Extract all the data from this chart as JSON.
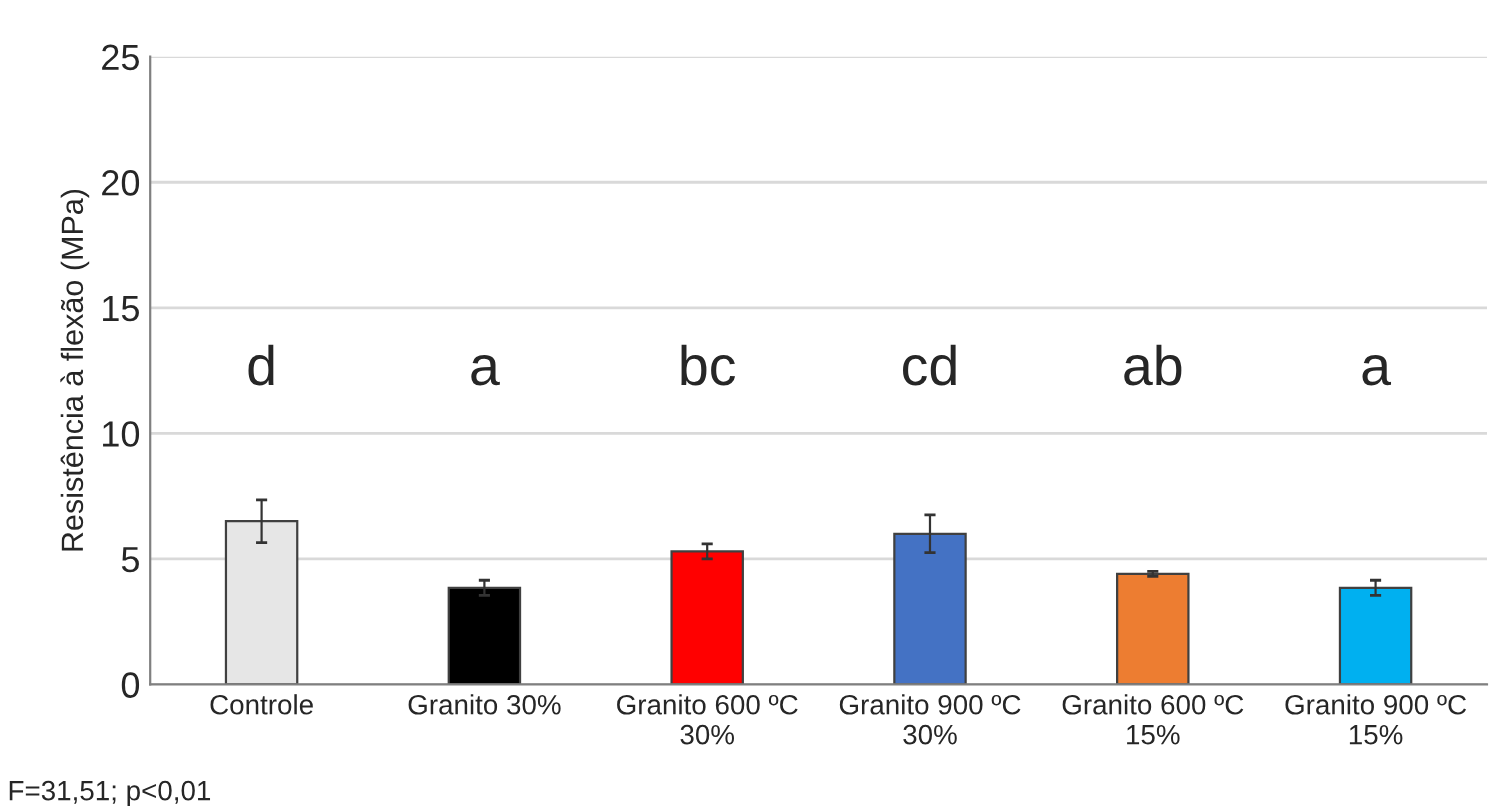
{
  "chart_data": {
    "type": "bar",
    "ylabel": "Resistência à flexão (MPa)",
    "categories": [
      "Controle",
      "Granito 30%",
      "Granito 600 ºC\n30%",
      "Granito 900 ºC\n30%",
      "Granito 600 ºC\n15%",
      "Granito 900 ºC\n15%"
    ],
    "values": [
      6.5,
      3.85,
      5.3,
      6.0,
      4.4,
      3.85
    ],
    "errors": [
      0.85,
      0.3,
      0.3,
      0.75,
      0.1,
      0.3
    ],
    "colors": [
      "#e6e6e6",
      "#000000",
      "#ff0000",
      "#4472c4",
      "#ed7d31",
      "#00b0f0"
    ],
    "ylim": [
      0,
      25
    ],
    "yticks": [
      0,
      5,
      10,
      15,
      20,
      25
    ],
    "grid": "y",
    "annotations": [
      "d",
      "a",
      "bc",
      "cd",
      "ab",
      "a",
      "F=31,51; p<0,01"
    ]
  }
}
